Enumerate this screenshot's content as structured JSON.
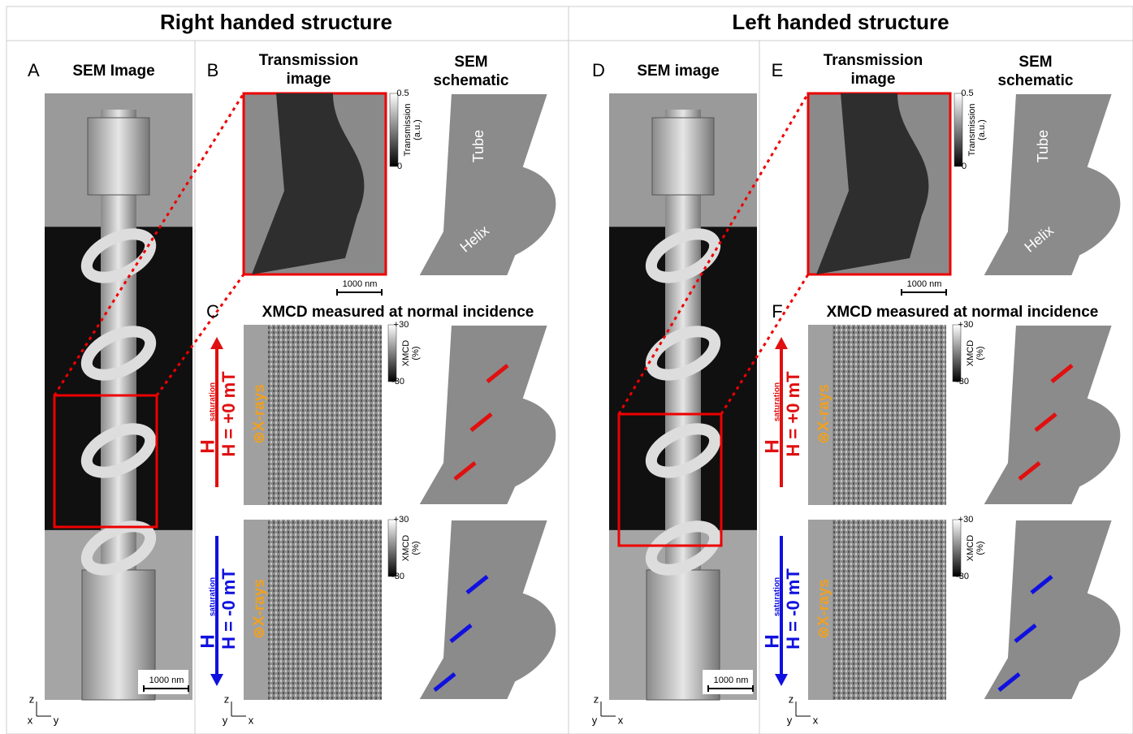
{
  "panels": [
    {
      "title": "Right handed structure",
      "sem": {
        "letter": "A",
        "label": "SEM Image",
        "scale": "1000 nm",
        "axes": [
          "z",
          "x",
          "y"
        ]
      },
      "transmission": {
        "letter": "B",
        "label": [
          "Transmission",
          "image"
        ],
        "scale": "1000 nm",
        "colorbar": {
          "max": "0.5",
          "min": "0",
          "label": [
            "Transmission",
            "(a.u.)"
          ]
        }
      },
      "schematic": {
        "label": [
          "SEM",
          "schematic"
        ],
        "tube": "Tube",
        "helix": "Helix"
      },
      "xmcd": {
        "letter": "C",
        "title": "XMCD measured at normal incidence",
        "axes": [
          "z",
          "y",
          "x"
        ],
        "rows": [
          {
            "field": "H",
            "sub": "saturation",
            "value": "H = +0 mT",
            "xrays": "⊗X-rays",
            "colorbar": {
              "max": "+30",
              "min": "-30",
              "label": [
                "XMCD",
                "(%)"
              ]
            }
          },
          {
            "field": "H",
            "sub": "saturation",
            "value": "H = -0 mT",
            "xrays": "⊗X-rays",
            "colorbar": {
              "max": "+30",
              "min": "-30",
              "label": [
                "XMCD",
                "(%)"
              ]
            }
          }
        ]
      }
    },
    {
      "title": "Left handed structure",
      "sem": {
        "letter": "D",
        "label": "SEM image",
        "scale": "1000 nm",
        "axes": [
          "z",
          "y",
          "x"
        ]
      },
      "transmission": {
        "letter": "E",
        "label": [
          "Transmission",
          "image"
        ],
        "scale": "1000 nm",
        "colorbar": {
          "max": "0.5",
          "min": "0",
          "label": [
            "Transmission",
            "(a.u.)"
          ]
        }
      },
      "schematic": {
        "label": [
          "SEM",
          "schematic"
        ],
        "tube": "Tube",
        "helix": "Helix"
      },
      "xmcd": {
        "letter": "F",
        "title": "XMCD measured at normal incidence",
        "axes": [
          "z",
          "y",
          "x"
        ],
        "rows": [
          {
            "field": "H",
            "sub": "saturation",
            "value": "H = +0 mT",
            "xrays": "⊗X-rays",
            "colorbar": {
              "max": "+30",
              "min": "-30",
              "label": [
                "XMCD",
                "(%)"
              ]
            }
          },
          {
            "field": "H",
            "sub": "saturation",
            "value": "H = -0 mT",
            "xrays": "⊗X-rays",
            "colorbar": {
              "max": "+30",
              "min": "-30",
              "label": [
                "XMCD",
                "(%)"
              ]
            }
          }
        ]
      }
    }
  ]
}
